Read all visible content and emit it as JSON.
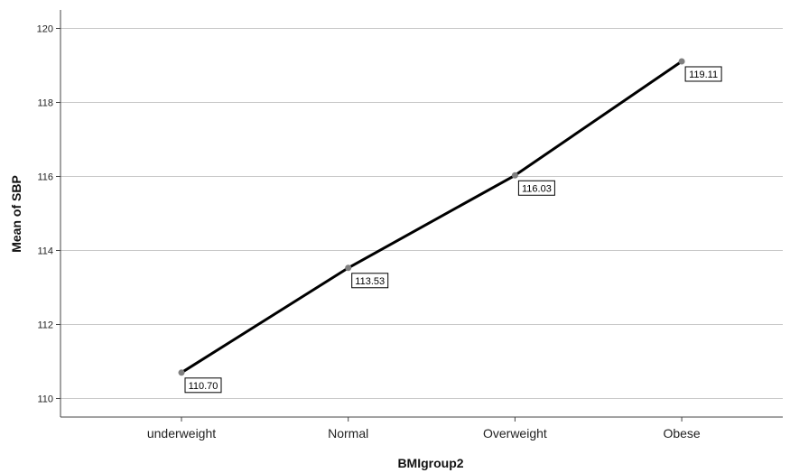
{
  "chart_data": {
    "type": "line",
    "categories": [
      "underweight",
      "Normal",
      "Overweight",
      "Obese"
    ],
    "series": [
      {
        "values": [
          110.7,
          113.53,
          116.03,
          119.11
        ]
      }
    ],
    "data_labels": [
      "110.70",
      "113.53",
      "116.03",
      "119.11"
    ],
    "xlabel": "BMIgroup2",
    "ylabel": "Mean of SBP",
    "ylim": [
      109.5,
      120.5
    ],
    "yticks": [
      110,
      112,
      114,
      116,
      118,
      120
    ],
    "grid": "horizontal",
    "colors": {
      "line": "#000000",
      "marker": "#808080",
      "grid": "#c8c8c8",
      "axis": "#444444"
    }
  }
}
